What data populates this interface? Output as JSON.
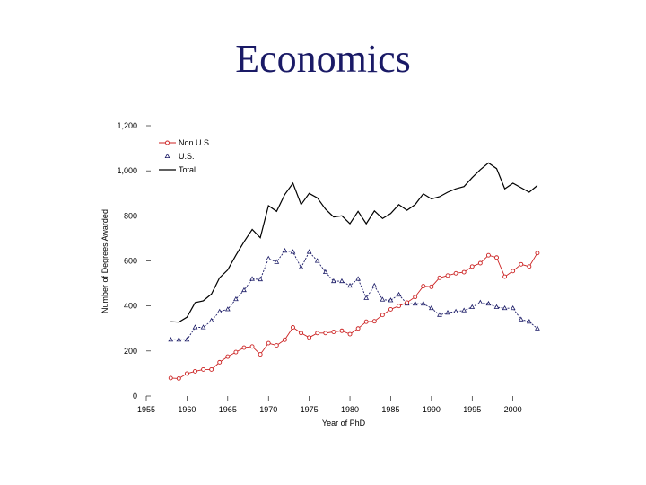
{
  "slide": {
    "title": "Economics"
  },
  "colors": {
    "title": "#1a1a66",
    "non_us": "#cc2222",
    "us": "#1a1a66",
    "total": "#000000",
    "axis": "#000000"
  },
  "chart_data": {
    "type": "line",
    "title": "",
    "xlabel": "Year of PhD",
    "ylabel": "Number of Degrees Awarded",
    "xlim": [
      1955,
      2004
    ],
    "ylim": [
      0,
      1200
    ],
    "xticks": [
      1955,
      1960,
      1965,
      1970,
      1975,
      1980,
      1985,
      1990,
      1995,
      2000
    ],
    "xtick_labels": [
      "1955",
      "1960",
      "1965",
      "1970",
      "1975",
      "1980",
      "1985",
      "1990",
      "1995",
      "2000"
    ],
    "yticks": [
      0,
      200,
      400,
      600,
      800,
      1000,
      1200
    ],
    "ytick_labels": [
      "0",
      "200",
      "400",
      "600",
      "800",
      "1,000",
      "1,200"
    ],
    "legend": {
      "position": "top-left",
      "entries": [
        "Non U.S.",
        "U.S.",
        "Total"
      ]
    },
    "x": [
      1958,
      1959,
      1960,
      1961,
      1962,
      1963,
      1964,
      1965,
      1966,
      1967,
      1968,
      1969,
      1970,
      1971,
      1972,
      1973,
      1974,
      1975,
      1976,
      1977,
      1978,
      1979,
      1980,
      1981,
      1982,
      1983,
      1984,
      1985,
      1986,
      1987,
      1988,
      1989,
      1990,
      1991,
      1992,
      1993,
      1994,
      1995,
      1996,
      1997,
      1998,
      1999,
      2000,
      2001,
      2002,
      2003
    ],
    "series": [
      {
        "name": "Non U.S.",
        "marker": "circle",
        "values": [
          80,
          78,
          100,
          110,
          118,
          118,
          150,
          175,
          195,
          215,
          220,
          185,
          235,
          225,
          250,
          305,
          280,
          260,
          280,
          280,
          285,
          290,
          275,
          300,
          330,
          332,
          360,
          385,
          400,
          415,
          440,
          488,
          485,
          525,
          535,
          545,
          550,
          575,
          590,
          625,
          615,
          530,
          555,
          585,
          575,
          635
        ]
      },
      {
        "name": "U.S.",
        "marker": "triangle",
        "values": [
          250,
          250,
          250,
          305,
          305,
          335,
          375,
          385,
          430,
          470,
          520,
          518,
          610,
          595,
          645,
          640,
          570,
          640,
          600,
          550,
          510,
          510,
          490,
          520,
          435,
          490,
          428,
          425,
          450,
          410,
          410,
          410,
          390,
          360,
          370,
          375,
          380,
          395,
          415,
          410,
          395,
          390,
          390,
          340,
          330,
          300
        ]
      },
      {
        "name": "Total",
        "marker": "none",
        "values": [
          330,
          328,
          350,
          415,
          423,
          453,
          525,
          560,
          625,
          685,
          740,
          703,
          845,
          820,
          895,
          945,
          850,
          900,
          880,
          830,
          795,
          800,
          765,
          820,
          765,
          822,
          788,
          810,
          850,
          825,
          850,
          898,
          875,
          885,
          905,
          920,
          930,
          970,
          1005,
          1035,
          1010,
          920,
          945,
          925,
          905,
          935
        ]
      }
    ]
  }
}
